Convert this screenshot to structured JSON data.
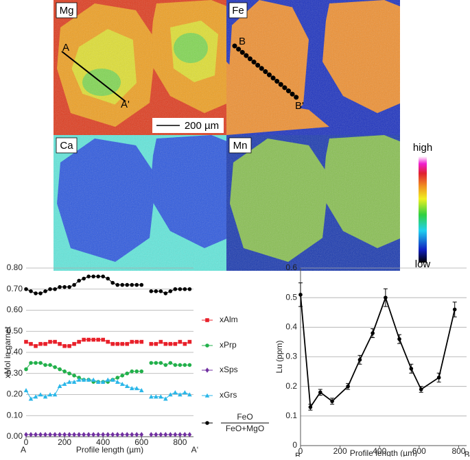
{
  "maps": {
    "panels": [
      "Mg",
      "Fe",
      "Ca",
      "Mn"
    ],
    "scale_bar": "200 µm",
    "profile_a": [
      "A",
      "A'"
    ],
    "profile_b": [
      "B",
      "B'"
    ],
    "colorbar": {
      "high": "high",
      "low": "low"
    }
  },
  "chart_data": [
    {
      "type": "line",
      "ylabel": "xMol in garnet",
      "xlabel": "Profile length (µm)",
      "x_start_label": "A",
      "x_end_label": "A‘",
      "xlim": [
        0,
        870
      ],
      "xticks": [
        0,
        200,
        400,
        600,
        800
      ],
      "ylim": [
        0,
        0.8
      ],
      "yticks": [
        {
          "value": 0,
          "label": "0.00"
        },
        {
          "value": 0.1,
          "label": "0.10"
        },
        {
          "value": 0.2,
          "label": "0.20"
        },
        {
          "value": 0.3,
          "label": "0.30"
        },
        {
          "value": 0.4,
          "label": "0.40"
        },
        {
          "value": 0.5,
          "label": "0.50"
        },
        {
          "value": 0.6,
          "label": "0.60"
        },
        {
          "value": 0.7,
          "label": "0.70"
        },
        {
          "value": 0.8,
          "label": "0.80"
        }
      ],
      "grid": true,
      "legend": "right",
      "x": [
        0,
        25,
        50,
        75,
        100,
        125,
        150,
        175,
        200,
        225,
        250,
        275,
        300,
        325,
        350,
        375,
        400,
        425,
        450,
        475,
        500,
        525,
        550,
        575,
        600,
        625,
        650,
        675,
        700,
        725,
        750,
        775,
        800,
        825,
        850
      ],
      "series": [
        {
          "name": "xAlm",
          "color": "#e8202a",
          "marker": "square",
          "values": [
            0.45,
            0.44,
            0.43,
            0.44,
            0.44,
            0.45,
            0.45,
            0.44,
            0.43,
            0.43,
            0.44,
            0.45,
            0.46,
            0.46,
            0.46,
            0.46,
            0.46,
            0.45,
            0.44,
            0.44,
            0.44,
            0.44,
            0.45,
            0.45,
            0.45,
            null,
            0.44,
            0.44,
            0.45,
            0.44,
            0.44,
            0.44,
            0.45,
            0.44,
            0.45
          ]
        },
        {
          "name": "xPrp",
          "color": "#22b04b",
          "marker": "circle",
          "values": [
            0.32,
            0.35,
            0.35,
            0.35,
            0.34,
            0.34,
            0.33,
            0.32,
            0.31,
            0.3,
            0.29,
            0.28,
            0.27,
            0.27,
            0.26,
            0.26,
            0.26,
            0.26,
            0.27,
            0.28,
            0.29,
            0.3,
            0.31,
            0.31,
            0.31,
            null,
            0.35,
            0.35,
            0.35,
            0.34,
            0.35,
            0.34,
            0.34,
            0.34,
            0.34
          ]
        },
        {
          "name": "xSps",
          "color": "#7030a0",
          "marker": "diamond",
          "values": [
            0.01,
            0.01,
            0.01,
            0.01,
            0.01,
            0.01,
            0.01,
            0.01,
            0.01,
            0.01,
            0.01,
            0.01,
            0.01,
            0.01,
            0.01,
            0.01,
            0.01,
            0.01,
            0.01,
            0.01,
            0.01,
            0.01,
            0.01,
            0.01,
            0.01,
            null,
            0.01,
            0.01,
            0.01,
            0.01,
            0.01,
            0.01,
            0.01,
            0.01,
            0.01
          ]
        },
        {
          "name": "xGrs",
          "color": "#29b6e8",
          "marker": "triangle",
          "values": [
            0.22,
            0.18,
            0.19,
            0.2,
            0.19,
            0.2,
            0.2,
            0.24,
            0.25,
            0.26,
            0.26,
            0.27,
            0.27,
            0.27,
            0.27,
            0.26,
            0.26,
            0.27,
            0.27,
            0.26,
            0.25,
            0.24,
            0.23,
            0.23,
            0.22,
            null,
            0.19,
            0.19,
            0.19,
            0.18,
            0.2,
            0.21,
            0.2,
            0.21,
            0.2
          ]
        },
        {
          "name": "FeO",
          "name_denominator": "FeO+MgO",
          "color": "#000000",
          "marker": "circle",
          "values": [
            0.7,
            0.69,
            0.68,
            0.68,
            0.69,
            0.7,
            0.7,
            0.71,
            0.71,
            0.71,
            0.72,
            0.74,
            0.75,
            0.76,
            0.76,
            0.76,
            0.76,
            0.75,
            0.73,
            0.72,
            0.72,
            0.72,
            0.72,
            0.72,
            0.72,
            null,
            0.69,
            0.69,
            0.69,
            0.68,
            0.69,
            0.7,
            0.7,
            0.7,
            0.7
          ]
        }
      ]
    },
    {
      "type": "line",
      "ylabel": "Lu (ppm)",
      "xlabel": "Profile length (µm)",
      "x_start_label": "B",
      "x_end_label": "B’",
      "xlim": [
        0,
        840
      ],
      "xticks": [
        0,
        200,
        400,
        600,
        800
      ],
      "ylim": [
        0,
        0.6
      ],
      "yticks": [
        0,
        0.1,
        0.2,
        0.3,
        0.4,
        0.5,
        0.6
      ],
      "grid": true,
      "x": [
        0,
        50,
        100,
        160,
        240,
        300,
        365,
        430,
        500,
        560,
        610,
        700,
        780
      ],
      "series": [
        {
          "color": "#000000",
          "marker": "circle",
          "values": [
            0.51,
            0.13,
            0.18,
            0.15,
            0.2,
            0.29,
            0.38,
            0.5,
            0.36,
            0.26,
            0.19,
            0.23,
            0.46
          ],
          "errors": [
            0.04,
            0.01,
            0.01,
            0.01,
            0.01,
            0.015,
            0.015,
            0.03,
            0.015,
            0.015,
            0.01,
            0.015,
            0.025
          ]
        }
      ]
    }
  ]
}
